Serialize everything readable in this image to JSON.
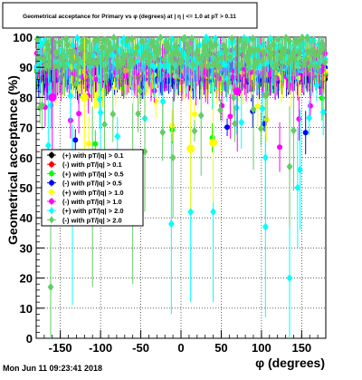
{
  "chart_data": {
    "type": "scatter",
    "title": "Geometrical acceptance for Primary vs φ (degrees) at | η | <= 1.0 at pT > 0.11",
    "xlabel": "φ (degrees)",
    "ylabel": "Geometrical acceptance (%)",
    "xlim": [
      -180,
      180
    ],
    "ylim": [
      0,
      100
    ],
    "x_ticks": [
      "-150",
      "-100",
      "-50",
      "0",
      "50",
      "100",
      "150"
    ],
    "x_tick_values": [
      -150,
      -100,
      -50,
      0,
      50,
      100,
      150
    ],
    "y_ticks": [
      "0",
      "10",
      "20",
      "30",
      "40",
      "50",
      "60",
      "70",
      "80",
      "90",
      "100"
    ],
    "y_tick_values": [
      0,
      10,
      20,
      30,
      40,
      50,
      60,
      70,
      80,
      90,
      100
    ],
    "grid": true,
    "legend_position": "center-left",
    "series": [
      {
        "name": "(+) with pT/|q| > 0.1",
        "color": "#000000",
        "marker": "circle",
        "base": 88,
        "spread": 2,
        "outlier_rate": 0.0
      },
      {
        "name": "(-) with pT/|q| > 0.1",
        "color": "#ff0000",
        "marker": "circle",
        "base": 89,
        "spread": 2,
        "outlier_rate": 0.0
      },
      {
        "name": "(+) with pT/|q| > 0.5",
        "color": "#00ff00",
        "marker": "circle",
        "base": 89,
        "spread": 3,
        "outlier_rate": 0.02
      },
      {
        "name": "(-) with pT/|q| > 0.5",
        "color": "#0000ff",
        "marker": "circle",
        "base": 88,
        "spread": 3,
        "outlier_rate": 0.02
      },
      {
        "name": "(+) with pT/|q| > 1.0",
        "color": "#ffff00",
        "marker": "circle",
        "base": 91,
        "spread": 5,
        "outlier_rate": 0.05
      },
      {
        "name": "(-) with pT/|q| > 1.0",
        "color": "#ff00ff",
        "marker": "circle",
        "base": 91,
        "spread": 5,
        "outlier_rate": 0.05
      },
      {
        "name": "(+) with pT/|q| > 2.0",
        "color": "#00ffff",
        "marker": "diamond",
        "base": 95,
        "spread": 5,
        "outlier_rate": 0.09
      },
      {
        "name": "(-) with pT/|q| > 2.0",
        "color": "#66cc66",
        "marker": "diamond",
        "base": 95,
        "spread": 5,
        "outlier_rate": 0.09
      }
    ],
    "highlight_points": [
      {
        "series": 6,
        "x": -165,
        "y": 64
      },
      {
        "series": 6,
        "x": -135,
        "y": 41
      },
      {
        "series": 6,
        "x": -45,
        "y": 73
      },
      {
        "series": 6,
        "x": -12,
        "y": 38
      },
      {
        "series": 6,
        "x": 12,
        "y": 42
      },
      {
        "series": 6,
        "x": 40,
        "y": 42
      },
      {
        "series": 6,
        "x": 105,
        "y": 37
      },
      {
        "series": 6,
        "x": 105,
        "y": 60
      },
      {
        "series": 6,
        "x": 135,
        "y": 20
      },
      {
        "series": 6,
        "x": 145,
        "y": 50
      },
      {
        "series": 6,
        "x": 148,
        "y": 56
      },
      {
        "series": 6,
        "x": -100,
        "y": 75
      },
      {
        "series": 7,
        "x": -162,
        "y": 17
      },
      {
        "series": 7,
        "x": -110,
        "y": 47
      },
      {
        "series": 7,
        "x": -60,
        "y": 48
      },
      {
        "series": 7,
        "x": -45,
        "y": 62
      },
      {
        "series": 7,
        "x": -10,
        "y": 60
      },
      {
        "series": 7,
        "x": 25,
        "y": 74
      },
      {
        "series": 7,
        "x": 135,
        "y": 57
      },
      {
        "series": 7,
        "x": 140,
        "y": 69
      },
      {
        "series": 7,
        "x": -95,
        "y": 71
      },
      {
        "series": 7,
        "x": 90,
        "y": 76
      },
      {
        "series": 4,
        "x": 12,
        "y": 63
      },
      {
        "series": 4,
        "x": 40,
        "y": 65
      },
      {
        "series": 4,
        "x": -120,
        "y": 80
      },
      {
        "series": 5,
        "x": -160,
        "y": 80
      },
      {
        "series": 5,
        "x": 70,
        "y": 82
      }
    ]
  },
  "footer": {
    "timestamp": "Mon Jun 11 09:23:41 2018"
  }
}
